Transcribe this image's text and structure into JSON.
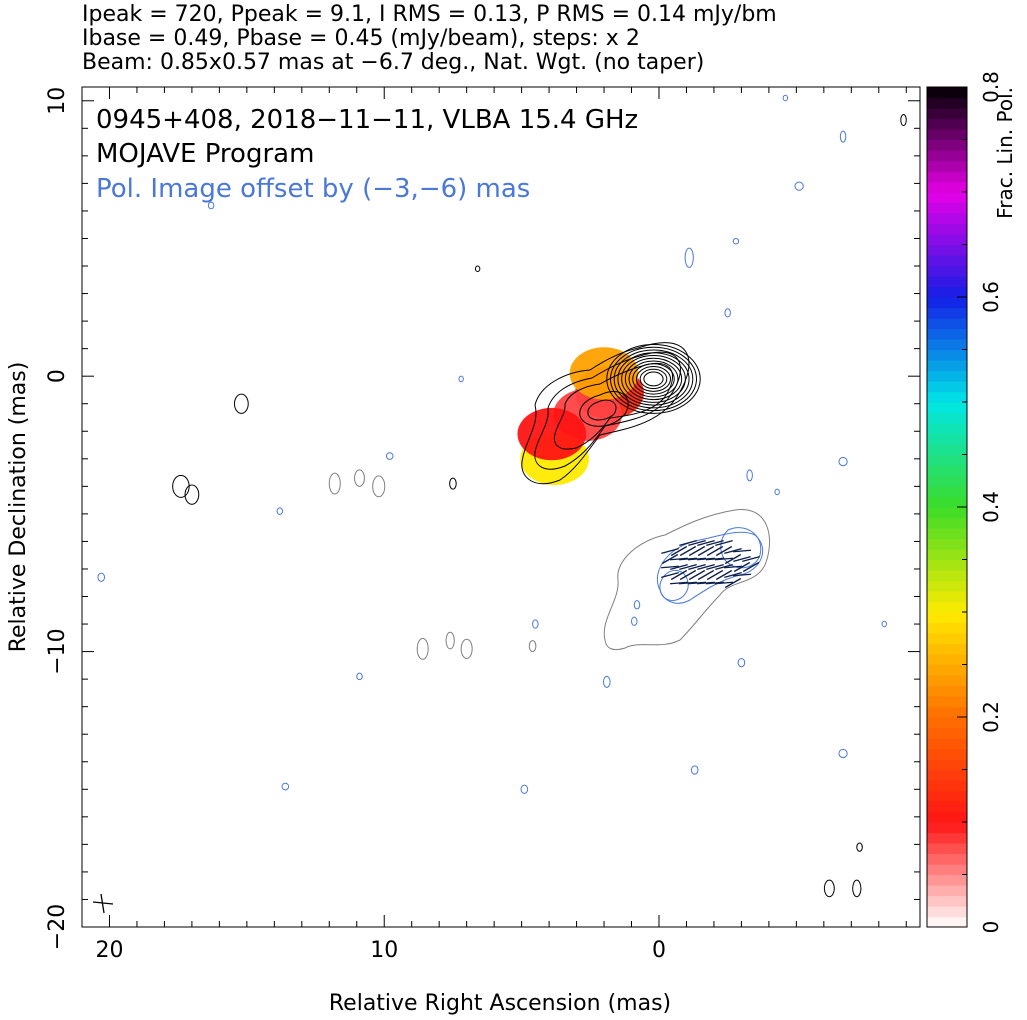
{
  "header": {
    "line1": "Ipeak = 720, Ppeak = 9.1, I RMS = 0.13, P RMS = 0.14 mJy/bm",
    "line2": "Ibase = 0.49, Pbase = 0.45 (mJy/beam), steps: x 2",
    "line3": "Beam: 0.85x0.57 mas at −6.7 deg., Nat. Wgt. (no taper)"
  },
  "plot_text": {
    "source_line": "0945+408, 2018−11−11, VLBA 15.4 GHz",
    "program_line": "MOJAVE Program",
    "offset_line": "Pol. Image offset by (−3,−6) mas"
  },
  "colors": {
    "stokes_i_contour": "#000000",
    "pol_contour": "#7f7f7f",
    "noise_contour": "#4a78d8",
    "offset_text": "#4a78d8",
    "evpa_tick": "#0b1d4a"
  },
  "chart_data": {
    "type": "heatmap",
    "title": "0945+408, 2018−11−11, VLBA 15.4 GHz",
    "xlabel": "Relative Right Ascension (mas)",
    "ylabel": "Relative Declination (mas)",
    "xlim": [
      21,
      -9.5
    ],
    "ylim": [
      -20,
      10.5
    ],
    "x_ticks": [
      "20",
      "10",
      "0"
    ],
    "y_ticks": [
      "10",
      "0",
      "−10",
      "−20"
    ],
    "x_tick_values": [
      20,
      10,
      0
    ],
    "y_tick_values": [
      10,
      0,
      -10,
      -20
    ],
    "colorbar": {
      "label": "Frac. Lin. Pol.",
      "range": [
        0,
        0.8
      ],
      "ticks": [
        "0",
        "0.2",
        "0.4",
        "0.6",
        "0.8"
      ],
      "tick_values": [
        0,
        0.2,
        0.4,
        0.6,
        0.8
      ]
    },
    "stokes_i": {
      "core": [
        0.2,
        -0.1
      ],
      "levels_mJy": [
        0.49,
        0.98,
        1.96,
        3.92,
        7.84,
        15.7,
        31.4,
        62.7,
        125,
        251,
        502
      ],
      "peak_mJy": 720
    },
    "fractional_pol_regions": [
      {
        "x": 1.8,
        "y": -0.6,
        "value": 0.12
      },
      {
        "x": 2.6,
        "y": -1.4,
        "value": 0.08
      },
      {
        "x": 2.0,
        "y": 0.1,
        "value": 0.24
      },
      {
        "x": 3.8,
        "y": -3.0,
        "value": 0.3
      },
      {
        "x": 3.9,
        "y": -2.1,
        "value": 0.1
      }
    ],
    "pol_image_offset_mas": [
      -3,
      -6
    ]
  }
}
